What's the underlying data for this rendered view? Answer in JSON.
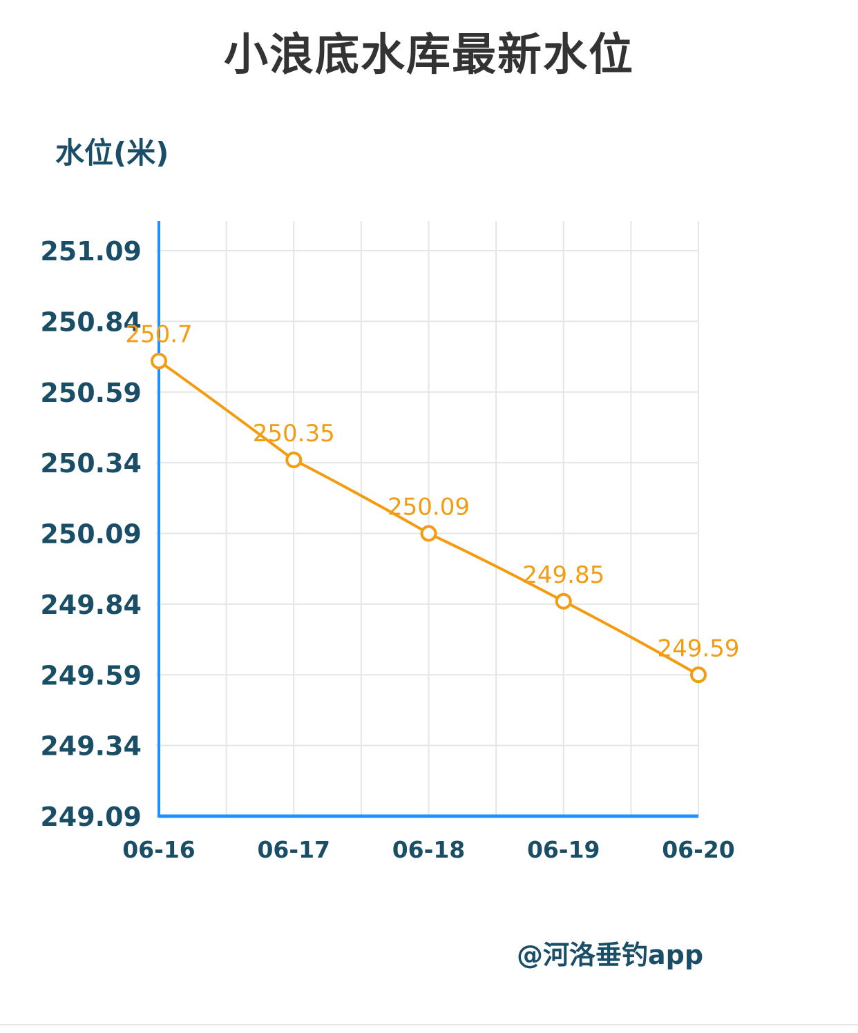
{
  "page": {
    "title": "小浪底水库最新水位",
    "watermark": "@河洛垂钓app"
  },
  "chart_data": {
    "type": "line",
    "title": "小浪底水库最新水位",
    "ylabel": "水位(米)",
    "xlabel": "",
    "categories": [
      "06-16",
      "06-17",
      "06-18",
      "06-19",
      "06-20"
    ],
    "series": [
      {
        "values": [
          250.7,
          250.35,
          250.09,
          249.85,
          249.59
        ]
      }
    ],
    "data_labels": [
      "250.7",
      "250.35",
      "250.09",
      "249.85",
      "249.59"
    ],
    "y_ticks": [
      "249.09",
      "249.34",
      "249.59",
      "249.84",
      "250.09",
      "250.34",
      "250.59",
      "250.84",
      "251.09"
    ],
    "ylim": [
      249.09,
      251.09
    ],
    "grid": true,
    "colors": {
      "line": "#f39c12",
      "axis": "#1e90ff",
      "grid": "#e3e6e8",
      "text": "#1a4e66"
    }
  }
}
